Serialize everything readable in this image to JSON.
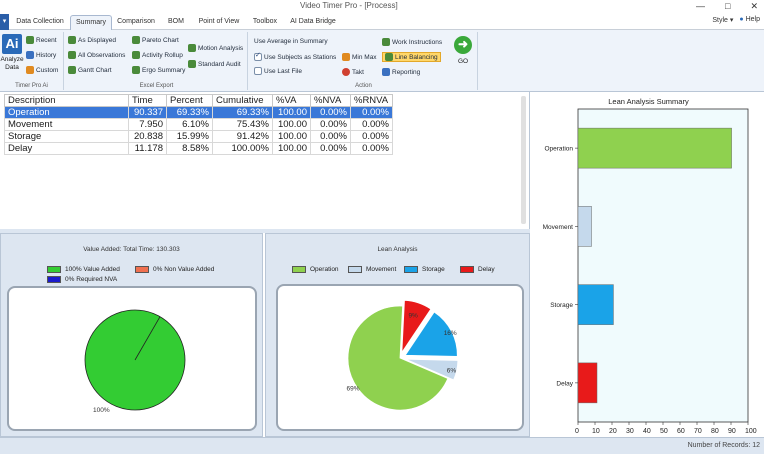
{
  "window": {
    "title": "Video Timer Pro - [Process]",
    "controls": [
      "—",
      "□",
      "✕"
    ]
  },
  "tabs": [
    {
      "label": "Data Collection",
      "active": false
    },
    {
      "label": "Summary",
      "active": true
    },
    {
      "label": "Comparison",
      "active": false
    },
    {
      "label": "BOM",
      "active": false
    },
    {
      "label": "Point of View",
      "active": false
    },
    {
      "label": "Toolbox",
      "active": false
    },
    {
      "label": "AI Data Bridge",
      "active": false
    }
  ],
  "top_right": {
    "style": "Style ▾",
    "help": "Help"
  },
  "ribbon": {
    "timer_group": {
      "title": "Timer Pro Ai",
      "big_label_1": "Analyze",
      "big_label_2": "Data",
      "items": [
        "Recent",
        "History",
        "Custom"
      ]
    },
    "excel_group": {
      "title": "Excel Export",
      "col1": [
        "As Displayed",
        "All Observations",
        "Gantt Chart"
      ],
      "col2": [
        "Pareto Chart",
        "Activity Rollup",
        "Ergo Summary"
      ],
      "col3": [
        "Motion Analysis",
        "Standard Audit"
      ]
    },
    "action_group": {
      "title": "Action",
      "checks": [
        {
          "label": "Use Average in Summary",
          "checked": false
        },
        {
          "label": "Use Subjects as Stations",
          "checked": true
        },
        {
          "label": "Use Last File",
          "checked": false
        }
      ],
      "col2": [
        "Min Max",
        "Takt"
      ],
      "col3": [
        "Work Instructions",
        "Line Balancing",
        "Reporting"
      ],
      "go": "GO"
    }
  },
  "table": {
    "headers": [
      "Description",
      "Time",
      "Percent",
      "Cumulative",
      "%VA",
      "%NVA",
      "%RNVA"
    ],
    "rows": [
      [
        "Operation",
        "90.337",
        "69.33%",
        "69.33%",
        "100.00",
        "0.00%",
        "0.00%"
      ],
      [
        "Movement",
        "7.950",
        "6.10%",
        "75.43%",
        "100.00",
        "0.00%",
        "0.00%"
      ],
      [
        "Storage",
        "20.838",
        "15.99%",
        "91.42%",
        "100.00",
        "0.00%",
        "0.00%"
      ],
      [
        "Delay",
        "11.178",
        "8.58%",
        "100.00%",
        "100.00",
        "0.00%",
        "0.00%"
      ]
    ]
  },
  "value_added": {
    "title": "Value Added: Total Time: 130.303",
    "legend": [
      {
        "label": "100% Value Added",
        "color": "#33cc33"
      },
      {
        "label": "0% Non Value Added",
        "color": "#f07050"
      },
      {
        "label": "0% Required NVA",
        "color": "#1a1acc"
      }
    ],
    "slice_label": "100%"
  },
  "lean": {
    "title": "Lean Analysis",
    "legend": [
      {
        "label": "Operation",
        "color": "#8fd14f"
      },
      {
        "label": "Movement",
        "color": "#c5d9ec"
      },
      {
        "label": "Storage",
        "color": "#1aa3e8"
      },
      {
        "label": "Delay",
        "color": "#e81a1a"
      }
    ],
    "slice_labels": [
      "69%",
      "6%",
      "16%",
      "9%"
    ]
  },
  "chart_data": [
    {
      "type": "pie",
      "title": "Value Added: Total Time: 130.303",
      "labels": [
        "Value Added",
        "Non Value Added",
        "Required NVA"
      ],
      "values": [
        100,
        0,
        0
      ]
    },
    {
      "type": "pie",
      "title": "Lean Analysis",
      "labels": [
        "Operation",
        "Movement",
        "Storage",
        "Delay"
      ],
      "values": [
        69.33,
        6.1,
        15.99,
        8.58
      ]
    },
    {
      "type": "bar",
      "orientation": "horizontal",
      "title": "Lean Analysis Summary",
      "categories": [
        "Operation",
        "Movement",
        "Storage",
        "Delay"
      ],
      "values": [
        90.337,
        7.95,
        20.838,
        11.178
      ],
      "colors": [
        "#8fd14f",
        "#c5d9ec",
        "#1aa3e8",
        "#e81a1a"
      ],
      "xlim": [
        0,
        100
      ],
      "ticks": [
        "0",
        "10",
        "20",
        "30",
        "40",
        "50",
        "60",
        "70",
        "80",
        "90",
        "100"
      ]
    }
  ],
  "status": "Number of Records: 12"
}
